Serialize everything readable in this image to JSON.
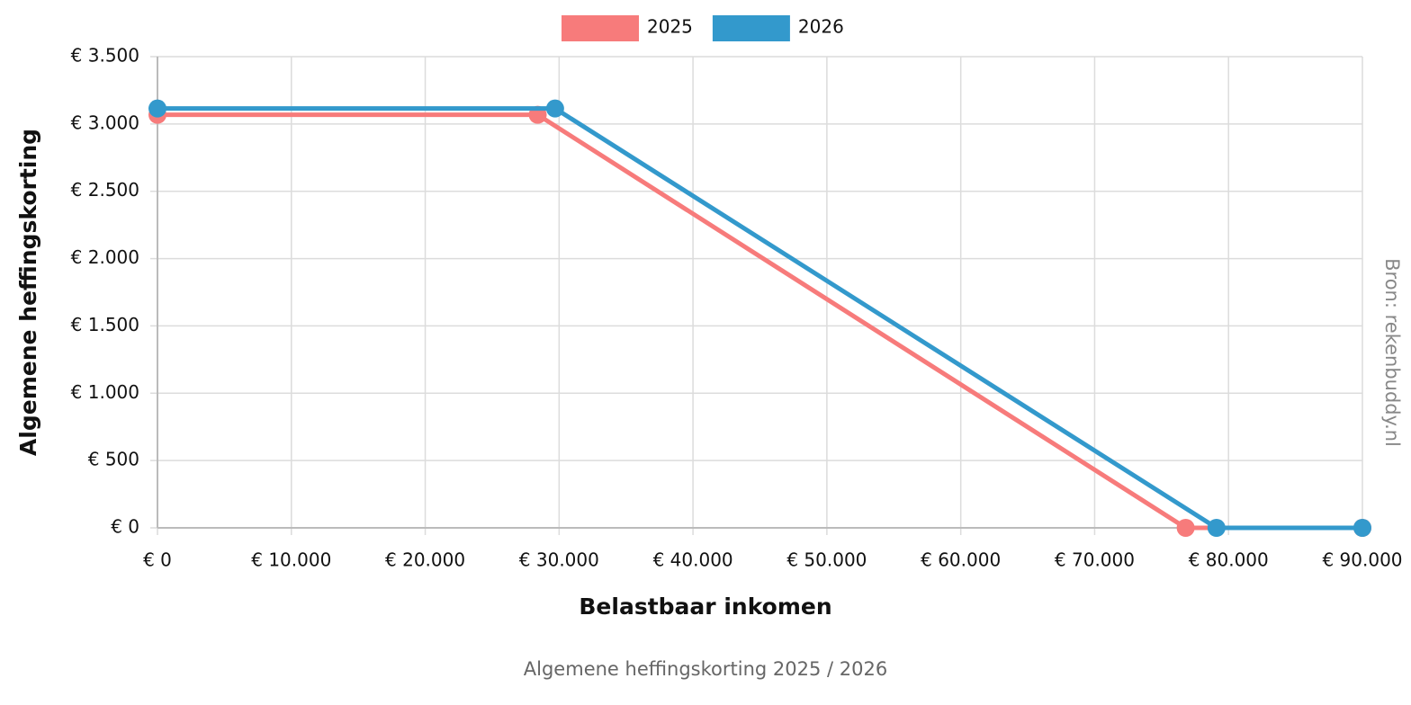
{
  "chart_data": {
    "type": "line",
    "title": "Algemene heffingskorting 2025 / 2026",
    "x_label": "Belastbaar inkomen",
    "y_label": "Algemene heffingskorting",
    "source": "Bron: rekenbuddy.nl",
    "series": [
      {
        "name": "2025",
        "color": "#f77b7b",
        "x": [
          0,
          28400,
          76800,
          90000
        ],
        "values": [
          3068,
          3068,
          0,
          0
        ]
      },
      {
        "name": "2026",
        "color": "#3399cc",
        "x": [
          0,
          29700,
          79100,
          90000
        ],
        "values": [
          3115,
          3115,
          0,
          0
        ]
      }
    ],
    "xlim": [
      0,
      90000
    ],
    "xticks": [
      {
        "value": 0,
        "label": "€ 0"
      },
      {
        "value": 10000,
        "label": "€ 10.000"
      },
      {
        "value": 20000,
        "label": "€ 20.000"
      },
      {
        "value": 30000,
        "label": "€ 30.000"
      },
      {
        "value": 40000,
        "label": "€ 40.000"
      },
      {
        "value": 50000,
        "label": "€ 50.000"
      },
      {
        "value": 60000,
        "label": "€ 60.000"
      },
      {
        "value": 70000,
        "label": "€ 70.000"
      },
      {
        "value": 80000,
        "label": "€ 80.000"
      },
      {
        "value": 90000,
        "label": "€ 90.000"
      }
    ],
    "ylim": [
      0,
      3500
    ],
    "yticks": [
      {
        "value": 0,
        "label": "€ 0"
      },
      {
        "value": 500,
        "label": "€ 500"
      },
      {
        "value": 1000,
        "label": "€ 1.000"
      },
      {
        "value": 1500,
        "label": "€ 1.500"
      },
      {
        "value": 2000,
        "label": "€ 2.000"
      },
      {
        "value": 2500,
        "label": "€ 2.500"
      },
      {
        "value": 3000,
        "label": "€ 3.000"
      },
      {
        "value": 3500,
        "label": "€ 3.500"
      }
    ],
    "grid": true,
    "legend": "top"
  }
}
